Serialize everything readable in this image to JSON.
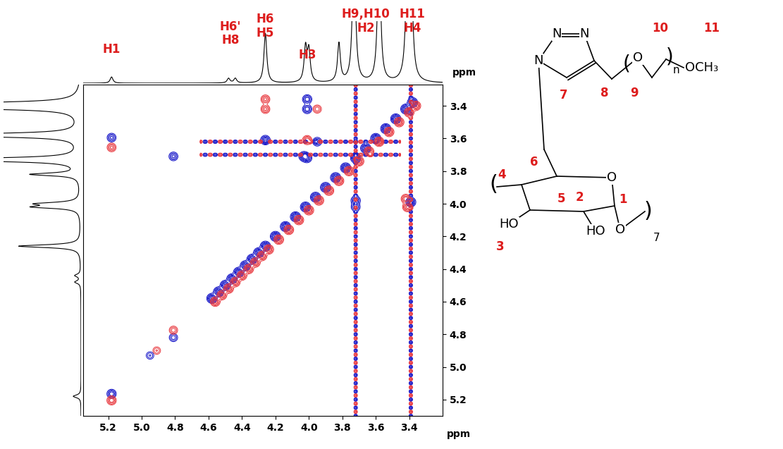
{
  "chart_data": {
    "type": "contour",
    "xlabel": "ppm",
    "ylabel": "ppm",
    "xlim": [
      5.35,
      3.2
    ],
    "ylim": [
      5.3,
      3.27
    ],
    "xticks": [
      5.2,
      5.0,
      4.8,
      4.6,
      4.4,
      4.2,
      4.0,
      3.8,
      3.6,
      3.4
    ],
    "yticks": [
      3.4,
      3.6,
      3.8,
      4.0,
      4.2,
      4.4,
      4.6,
      4.8,
      5.0,
      5.2
    ],
    "series": [
      {
        "color": "#1414c8",
        "peaks": [
          {
            "x": 5.18,
            "y": 3.595,
            "intensity": 0.5
          },
          {
            "x": 5.18,
            "y": 5.165,
            "intensity": 0.6
          },
          {
            "x": 4.81,
            "y": 3.71,
            "intensity": 0.5
          },
          {
            "x": 4.81,
            "y": 4.82,
            "intensity": 0.4
          },
          {
            "x": 4.95,
            "y": 4.93,
            "intensity": 0.3
          },
          {
            "x": 4.01,
            "y": 3.36,
            "intensity": 0.6
          },
          {
            "x": 4.01,
            "y": 3.42,
            "intensity": 0.6
          },
          {
            "x": 4.26,
            "y": 3.61,
            "intensity": 0.7
          },
          {
            "x": 4.03,
            "y": 3.71,
            "intensity": 0.8
          },
          {
            "x": 3.95,
            "y": 3.62,
            "intensity": 0.5
          },
          {
            "x": 3.39,
            "y": 3.99,
            "intensity": 0.8
          },
          {
            "x": 3.72,
            "y": 3.98,
            "intensity": 0.6
          },
          {
            "x": 3.72,
            "y": 4.02,
            "intensity": 0.5
          },
          {
            "x": 4.01,
            "y": 3.72,
            "intensity": 0.6
          }
        ]
      },
      {
        "color": "#e8343a",
        "peaks": [
          {
            "x": 5.18,
            "y": 3.655,
            "intensity": 0.5
          },
          {
            "x": 5.18,
            "y": 5.205,
            "intensity": 0.6
          },
          {
            "x": 4.81,
            "y": 4.775,
            "intensity": 0.4
          },
          {
            "x": 4.91,
            "y": 4.9,
            "intensity": 0.3
          },
          {
            "x": 4.26,
            "y": 3.36,
            "intensity": 0.5
          },
          {
            "x": 4.26,
            "y": 3.42,
            "intensity": 0.5
          },
          {
            "x": 3.95,
            "y": 3.42,
            "intensity": 0.4
          },
          {
            "x": 4.01,
            "y": 3.61,
            "intensity": 0.6
          },
          {
            "x": 3.41,
            "y": 4.02,
            "intensity": 0.7
          },
          {
            "x": 3.42,
            "y": 3.97,
            "intensity": 0.6
          }
        ]
      }
    ],
    "diagonal_ppm": [
      4.58,
      4.54,
      4.5,
      4.46,
      4.42,
      4.38,
      4.34,
      4.3,
      4.26,
      4.2,
      4.14,
      4.08,
      4.02,
      3.96,
      3.9,
      3.84,
      3.78,
      3.72,
      3.66,
      3.6,
      3.54,
      3.48,
      3.42,
      3.38
    ],
    "t1_noise_ppm": [
      3.72,
      3.39
    ],
    "t2_noise_ppm": [
      3.7,
      3.62
    ],
    "spectrum": {
      "color": "#000000",
      "peaks": [
        {
          "ppm": 5.18,
          "height": 0.04
        },
        {
          "ppm": 4.48,
          "height": 0.03
        },
        {
          "ppm": 4.44,
          "height": 0.03
        },
        {
          "ppm": 4.26,
          "height": 0.32
        },
        {
          "ppm": 4.02,
          "height": 0.22
        },
        {
          "ppm": 4.0,
          "height": 0.2
        },
        {
          "ppm": 3.82,
          "height": 0.25
        },
        {
          "ppm": 3.73,
          "height": 1.0
        },
        {
          "ppm": 3.58,
          "height": 1.0
        },
        {
          "ppm": 3.41,
          "height": 0.9
        },
        {
          "ppm": 3.39,
          "height": 0.9
        }
      ]
    },
    "peak_labels": [
      {
        "text": "H1",
        "ppm": 5.18
      },
      {
        "text": "H6'\nH8",
        "ppm": 4.47
      },
      {
        "text": "H6\nH5",
        "ppm": 4.26
      },
      {
        "text": "H3",
        "ppm": 4.01
      },
      {
        "text": "H9,H10\nH2",
        "ppm": 3.66
      },
      {
        "text": "H11\nH4",
        "ppm": 3.38
      }
    ],
    "label_color": "#dd1c1c",
    "structure": {
      "atom_labels": [
        "N",
        "N",
        "N",
        "O",
        "O",
        "HO",
        "HO",
        "O",
        "OCH₃",
        "(",
        ")",
        "n",
        "(",
        ")",
        "7"
      ],
      "position_labels": [
        "1",
        "2",
        "3",
        "4",
        "5",
        "6",
        "7",
        "8",
        "9",
        "10",
        "11"
      ]
    }
  }
}
